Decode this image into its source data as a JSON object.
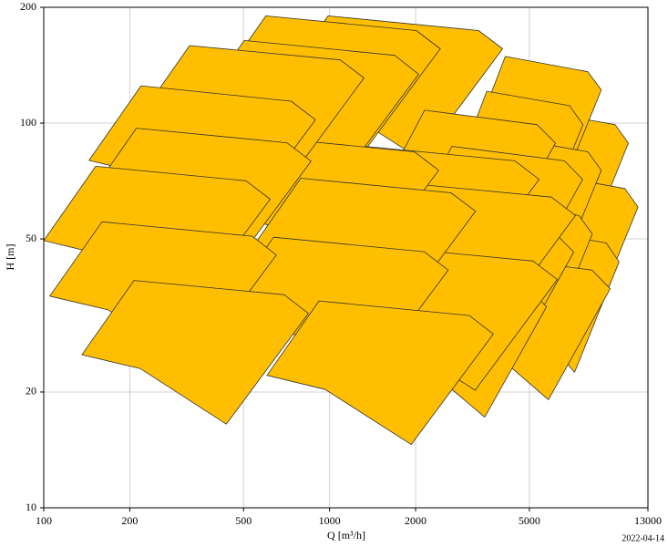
{
  "chart_data": {
    "type": "tiles",
    "xlabel": "Q [m³/h]",
    "ylabel": "H [m]",
    "footnote": "2022-04-14",
    "xscale": "log",
    "yscale": "log",
    "grid": true,
    "color": "#ffbf00",
    "edgecolor": "#333333",
    "xlim": [
      100,
      13000
    ],
    "ylim": [
      10,
      200
    ],
    "xticks": [
      100,
      200,
      500,
      1000,
      2000,
      5000,
      13000
    ],
    "yticks": [
      10,
      20,
      50,
      100,
      200
    ],
    "series": [
      {
        "x": [
          4075,
          5130,
          9980,
          11100,
          7740,
          5300
        ],
        "y": [
          69.3,
          108,
          99.1,
          88.7,
          45.7,
          63.8
        ]
      },
      {
        "x": [
          4390,
          5530,
          10800,
          12000,
          8340,
          5710
        ],
        "y": [
          47.3,
          73.8,
          67.6,
          60.5,
          31.2,
          43.5
        ]
      },
      {
        "x": [
          3790,
          4780,
          9290,
          10300,
          7200,
          4930
        ],
        "y": [
          34.1,
          53.2,
          48.8,
          43.6,
          22.5,
          31.4
        ]
      },
      {
        "x": [
          3270,
          4120,
          8010,
          8930,
          6210,
          4250
        ],
        "y": [
          95.3,
          149,
          136,
          122,
          62.9,
          87.7
        ]
      },
      {
        "x": [
          2820,
          3550,
          6910,
          7700,
          5360,
          3670
        ],
        "y": [
          77.4,
          121,
          111,
          99.1,
          51.1,
          71.2
        ]
      },
      {
        "x": [
          3270,
          4120,
          8010,
          8930,
          6210,
          4250
        ],
        "y": [
          58.9,
          91.9,
          84.2,
          75.4,
          38.9,
          54.2
        ]
      },
      {
        "x": [
          3040,
          3830,
          7450,
          8300,
          5780,
          3950
        ],
        "y": [
          40.2,
          62.7,
          57.5,
          51.5,
          26.5,
          37
        ]
      },
      {
        "x": [
          2440,
          3340,
          8270,
          9590,
          5830,
          3460
        ],
        "y": [
          29,
          45.2,
          41.5,
          37.1,
          19.1,
          26.7
        ]
      },
      {
        "x": [
          650,
          988,
          3320,
          4030,
          2080,
          1040
        ],
        "y": [
          122,
          190,
          174,
          156,
          80.5,
          112
        ]
      },
      {
        "x": [
          1570,
          2150,
          5320,
          6170,
          3750,
          2230
        ],
        "y": [
          69.3,
          108,
          99.1,
          88.7,
          45.7,
          63.8
        ]
      },
      {
        "x": [
          1955,
          2680,
          6630,
          7680,
          4670,
          2780
        ],
        "y": [
          55.8,
          87,
          79.8,
          71.4,
          36.8,
          51.3
        ]
      },
      {
        "x": [
          1820,
          2490,
          6170,
          7150,
          4350,
          2580
        ],
        "y": [
          36.1,
          56.3,
          51.6,
          46.2,
          23.8,
          33.2
        ]
      },
      {
        "x": [
          1460,
          2000,
          4950,
          5740,
          3490,
          2070
        ],
        "y": [
          26,
          40.6,
          37.2,
          33.3,
          17.2,
          23.9
        ]
      },
      {
        "x": [
          394,
          599,
          2010,
          2440,
          1260,
          630
        ],
        "y": [
          122,
          190,
          174,
          156,
          80.5,
          112
        ]
      },
      {
        "x": [
          873,
          1330,
          4450,
          5410,
          2790,
          1400
        ],
        "y": [
          55.8,
          87,
          79.8,
          71.4,
          36.8,
          51.3
        ]
      },
      {
        "x": [
          1170,
          1780,
          5970,
          7250,
          3740,
          1870
        ],
        "y": [
          44.9,
          70,
          64.2,
          57.5,
          29.6,
          41.3
        ]
      },
      {
        "x": [
          1010,
          1540,
          5150,
          6260,
          3230,
          1620
        ],
        "y": [
          30.6,
          47.7,
          43.8,
          39.2,
          20.2,
          28.2
        ]
      },
      {
        "x": [
          331,
          503,
          1690,
          2050,
          1060,
          530
        ],
        "y": [
          105,
          164,
          150,
          134,
          69.3,
          96.6
        ]
      },
      {
        "x": [
          389,
          591,
          1980,
          2410,
          1240,
          622
        ],
        "y": [
          58.9,
          91.9,
          84.2,
          75.4,
          38.9,
          54.2
        ]
      },
      {
        "x": [
          522,
          793,
          2660,
          3240,
          1670,
          835
        ],
        "y": [
          46.1,
          71.9,
          65.9,
          59,
          30.4,
          42.4
        ]
      },
      {
        "x": [
          419,
          637,
          2140,
          2600,
          1340,
          670
        ],
        "y": [
          32.4,
          50.5,
          46.3,
          41.5,
          21.4,
          29.8
        ]
      },
      {
        "x": [
          604,
          918,
          3080,
          3740,
          1930,
          966
        ],
        "y": [
          22.1,
          34.5,
          31.6,
          28.3,
          14.6,
          20.3
        ]
      },
      {
        "x": [
          213,
          324,
          1090,
          1320,
          682,
          341
        ],
        "y": [
          102,
          159,
          146,
          131,
          67.3,
          93.8
        ]
      },
      {
        "x": [
          144,
          219,
          734,
          893,
          461,
          230
        ],
        "y": [
          80,
          125,
          114,
          102,
          52.8,
          73.6
        ]
      },
      {
        "x": [
          139,
          211,
          709,
          862,
          445,
          222
        ],
        "y": [
          62.2,
          97,
          88.9,
          79.6,
          41.1,
          57.2
        ]
      },
      {
        "x": [
          100,
          152,
          510,
          620,
          320,
          160
        ],
        "y": [
          49.5,
          77.2,
          70.8,
          63.4,
          32.7,
          45.5
        ]
      },
      {
        "x": [
          105,
          160,
          536,
          651,
          336,
          168
        ],
        "y": [
          35.5,
          55.4,
          50.8,
          45.4,
          23.4,
          32.7
        ]
      },
      {
        "x": [
          136,
          207,
          694,
          843,
          435,
          218
        ],
        "y": [
          25,
          39,
          35.8,
          32,
          16.5,
          23
        ]
      }
    ]
  }
}
